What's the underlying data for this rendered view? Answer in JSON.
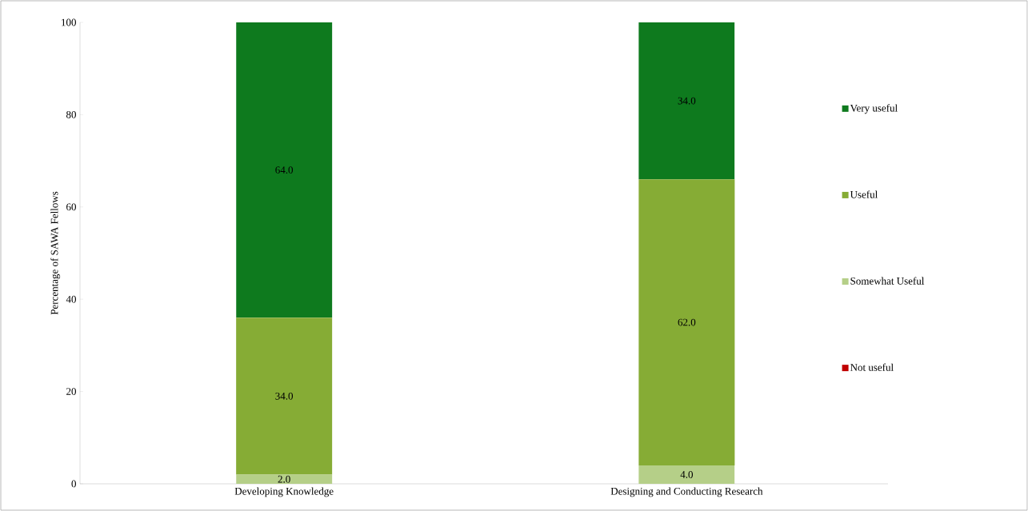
{
  "chart_data": {
    "type": "bar",
    "stacked": true,
    "ylabel": "Percentage of  SAWA Fellows",
    "categories": [
      "Developing Knowledge",
      "Designing and Conducting Research"
    ],
    "series": [
      {
        "name": "Not useful",
        "color": "#c00000",
        "values": [
          0,
          0
        ],
        "value_labels": [
          null,
          null
        ]
      },
      {
        "name": "Somewhat Useful",
        "color": "#b5cf88",
        "values": [
          2,
          4
        ],
        "value_labels": [
          "2.0",
          "4.0"
        ]
      },
      {
        "name": "Useful",
        "color": "#86ac35",
        "values": [
          34,
          62
        ],
        "value_labels": [
          "34.0",
          "62.0"
        ]
      },
      {
        "name": "Very useful",
        "color": "#0e7a1e",
        "values": [
          64,
          34
        ],
        "value_labels": [
          "64.0",
          "34.0"
        ]
      }
    ],
    "ylim": [
      0,
      100
    ],
    "yticks": [
      0,
      20,
      40,
      60,
      80,
      100
    ],
    "grid": false,
    "legend": "right"
  }
}
